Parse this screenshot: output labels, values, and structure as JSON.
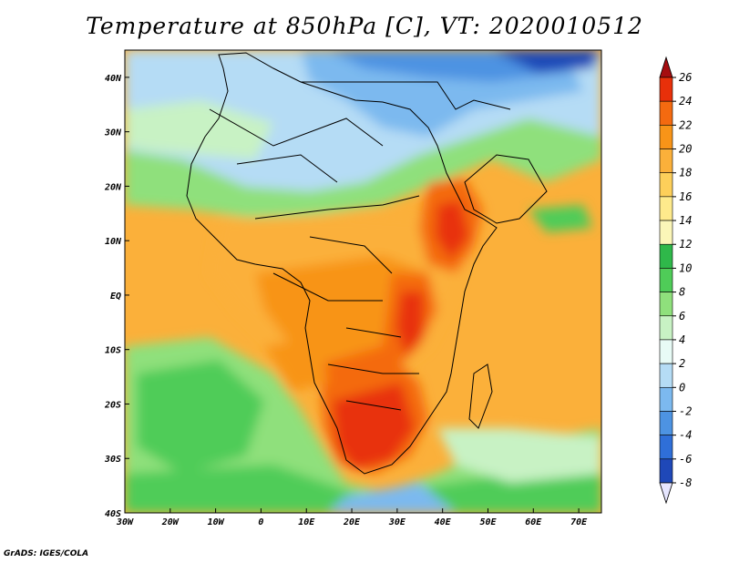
{
  "title": "Temperature at 850hPa [C], VT: 2020010512",
  "credit": "GrADS: IGES/COLA",
  "map": {
    "region": "Africa",
    "lon_range": [
      -30,
      75
    ],
    "lat_range": [
      -40,
      45
    ],
    "x_ticks": [
      "30W",
      "20W",
      "10W",
      "0",
      "10E",
      "20E",
      "30E",
      "40E",
      "50E",
      "60E",
      "70E"
    ],
    "y_ticks": [
      "40N",
      "30N",
      "20N",
      "10N",
      "EQ",
      "10S",
      "20S",
      "30S",
      "40S"
    ],
    "variable": "Temperature at 850hPa",
    "units": "C",
    "valid_time": "2020010512"
  },
  "colorbar": {
    "labels": [
      "26",
      "24",
      "22",
      "20",
      "18",
      "16",
      "14",
      "12",
      "10",
      "8",
      "6",
      "4",
      "2",
      "0",
      "-2",
      "-4",
      "-6",
      "-8"
    ],
    "colors": [
      "#a50d10",
      "#e8300a",
      "#f46a10",
      "#f89418",
      "#fbb03a",
      "#fdcf5a",
      "#feea8c",
      "#fbf6b8",
      "#2fb84a",
      "#4fcc58",
      "#8fe07c",
      "#c8f2c4",
      "#e8fbf6",
      "#b5dcf5",
      "#7cb9ef",
      "#4d93e2",
      "#2f6fd8",
      "#1f48b8",
      "#0f2784",
      "#0b1760"
    ]
  }
}
